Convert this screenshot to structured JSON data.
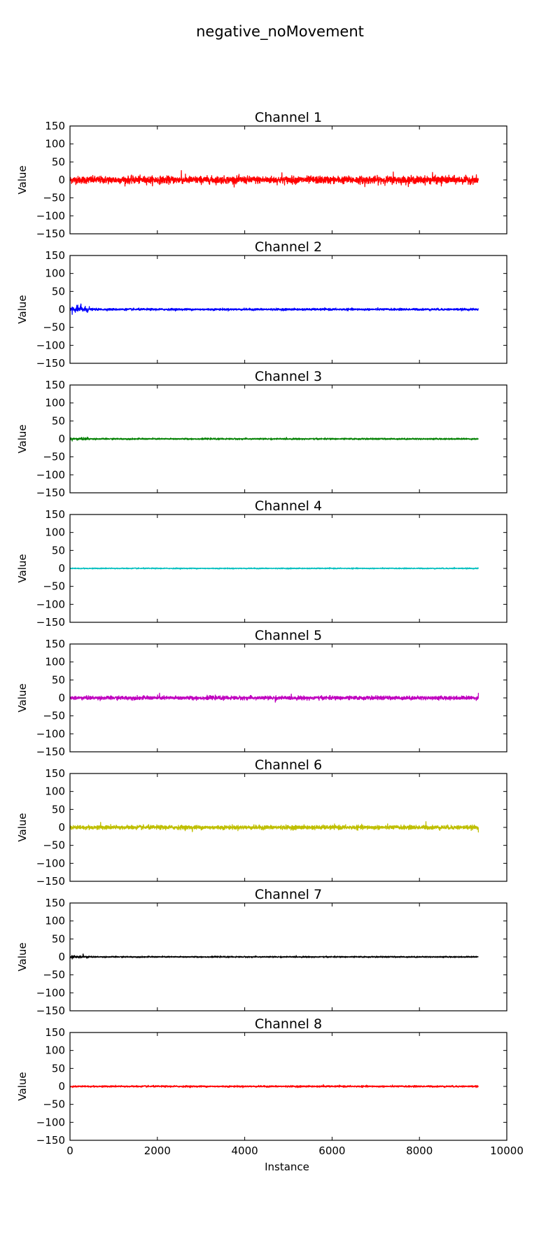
{
  "title": "negative_noMovement",
  "xlabel": "Instance",
  "chart_data": {
    "type": "line",
    "title": "negative_noMovement",
    "xlabel": "Instance",
    "ylabel": "Value",
    "xlim": [
      0,
      10000
    ],
    "ylim": [
      -150,
      150
    ],
    "x_ticks": [
      0,
      2000,
      4000,
      6000,
      8000,
      10000
    ],
    "x_tick_labels": [
      "0",
      "2000",
      "4000",
      "6000",
      "8000",
      "10000"
    ],
    "y_ticks": [
      150,
      100,
      50,
      0,
      -50,
      -100,
      -150
    ],
    "y_tick_labels": [
      "150",
      "100",
      "50",
      "0",
      "−50",
      "−100",
      "−150"
    ],
    "grid": false,
    "x_extent": 9350,
    "panels": [
      {
        "title": "Channel 1",
        "ylabel": "Value",
        "color": "#ff0000",
        "baseline": 0,
        "amplitude": 9,
        "spikes": [
          [
            2550,
            26
          ],
          [
            4850,
            20
          ],
          [
            7400,
            22
          ],
          [
            8300,
            21
          ],
          [
            6750,
            -19
          ],
          [
            8500,
            -17
          ]
        ],
        "start_burst": 0
      },
      {
        "title": "Channel 2",
        "ylabel": "Value",
        "color": "#0000ff",
        "baseline": 0,
        "amplitude": 2.5,
        "spikes": [
          [
            250,
            15
          ],
          [
            50,
            -14
          ],
          [
            180,
            12
          ]
        ],
        "start_burst": 7
      },
      {
        "title": "Channel 3",
        "ylabel": "Value",
        "color": "#008000",
        "baseline": 0,
        "amplitude": 1.8,
        "spikes": [
          [
            50,
            -6
          ],
          [
            400,
            5
          ]
        ],
        "start_burst": 3
      },
      {
        "title": "Channel 4",
        "ylabel": "Value",
        "color": "#00bfbf",
        "baseline": 0,
        "amplitude": 1.3,
        "spikes": [
          [
            8800,
            3
          ]
        ],
        "start_burst": 0
      },
      {
        "title": "Channel 5",
        "ylabel": "Value",
        "color": "#bf00bf",
        "baseline": 0,
        "amplitude": 4.5,
        "spikes": [
          [
            2050,
            13
          ],
          [
            9350,
            14
          ],
          [
            4700,
            -12
          ]
        ],
        "start_burst": 0
      },
      {
        "title": "Channel 6",
        "ylabel": "Value",
        "color": "#bfbf00",
        "baseline": 0,
        "amplitude": 5,
        "spikes": [
          [
            700,
            14
          ],
          [
            8150,
            16
          ],
          [
            9350,
            12
          ],
          [
            2800,
            -12
          ],
          [
            9350,
            -14
          ]
        ],
        "start_burst": 0
      },
      {
        "title": "Channel 7",
        "ylabel": "Value",
        "color": "#000000",
        "baseline": 0,
        "amplitude": 1.6,
        "spikes": [
          [
            300,
            8
          ],
          [
            50,
            -6
          ]
        ],
        "start_burst": 3
      },
      {
        "title": "Channel 8",
        "ylabel": "Value",
        "color": "#ff0000",
        "baseline": 0,
        "amplitude": 2,
        "spikes": [
          [
            5800,
            5
          ]
        ],
        "start_burst": 0
      }
    ]
  }
}
